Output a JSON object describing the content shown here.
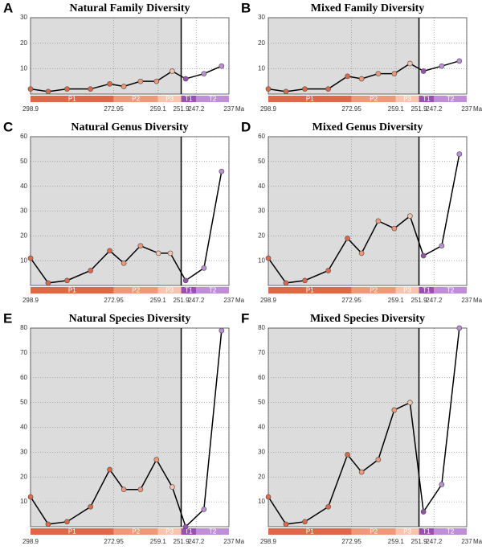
{
  "chart_data": [
    {
      "type": "line",
      "panel": "A",
      "title": "Natural Family Diversity",
      "x_label": "Ma",
      "x": [
        298.9,
        293.4,
        287.5,
        280.2,
        274.2,
        269.8,
        264.6,
        259.6,
        254.7,
        250.5,
        244.8,
        239.3
      ],
      "values": [
        2,
        1,
        2,
        2,
        4,
        3,
        5,
        5,
        9,
        6,
        8,
        11
      ],
      "xlim": [
        298.9,
        237
      ],
      "xticks": [
        298.9,
        272.95,
        259.1,
        251.9,
        247.2,
        237
      ],
      "ylim": [
        0,
        30
      ],
      "yticks": [
        10,
        20,
        30
      ],
      "grid": true,
      "line_color": "#000000",
      "periods": [
        {
          "name": "P1",
          "start": 298.9,
          "end": 272.95,
          "color": "#e0684a"
        },
        {
          "name": "P2",
          "start": 272.95,
          "end": 259.1,
          "color": "#f0987a"
        },
        {
          "name": "P3",
          "start": 259.1,
          "end": 251.9,
          "color": "#f8c4ae"
        },
        {
          "name": "T1",
          "start": 251.9,
          "end": 247.2,
          "color": "#9a50b0"
        },
        {
          "name": "T2",
          "start": 247.2,
          "end": 237,
          "color": "#c08ed6"
        }
      ]
    },
    {
      "type": "line",
      "panel": "B",
      "title": "Mixed Family Diversity",
      "x_label": "Ma",
      "x": [
        298.9,
        293.4,
        287.5,
        280.2,
        274.2,
        269.8,
        264.6,
        259.6,
        254.7,
        250.5,
        244.8,
        239.3
      ],
      "values": [
        2,
        1,
        2,
        2,
        7,
        6,
        8,
        8,
        12,
        9,
        11,
        13
      ],
      "xlim": [
        298.9,
        237
      ],
      "xticks": [
        298.9,
        272.95,
        259.1,
        251.9,
        247.2,
        237
      ],
      "ylim": [
        0,
        30
      ],
      "yticks": [
        10,
        20,
        30
      ],
      "grid": true,
      "line_color": "#000000",
      "periods": [
        {
          "name": "P1",
          "start": 298.9,
          "end": 272.95,
          "color": "#e0684a"
        },
        {
          "name": "P2",
          "start": 272.95,
          "end": 259.1,
          "color": "#f0987a"
        },
        {
          "name": "P3",
          "start": 259.1,
          "end": 251.9,
          "color": "#f8c4ae"
        },
        {
          "name": "T1",
          "start": 251.9,
          "end": 247.2,
          "color": "#9a50b0"
        },
        {
          "name": "T2",
          "start": 247.2,
          "end": 237,
          "color": "#c08ed6"
        }
      ]
    },
    {
      "type": "line",
      "panel": "C",
      "title": "Natural Genus Diversity",
      "x_label": "Ma",
      "x": [
        298.9,
        293.4,
        287.5,
        280.2,
        274.2,
        269.8,
        264.6,
        259.0,
        255.3,
        250.5,
        244.8,
        239.3
      ],
      "values": [
        11,
        1,
        2,
        6,
        14,
        9,
        16,
        13,
        13,
        2,
        7,
        46
      ],
      "xlim": [
        298.9,
        237
      ],
      "xticks": [
        298.9,
        272.95,
        259.1,
        251.9,
        247.2,
        237
      ],
      "ylim": [
        0,
        60
      ],
      "yticks": [
        10,
        20,
        30,
        40,
        50,
        60
      ],
      "grid": true,
      "line_color": "#000000",
      "periods": [
        {
          "name": "P1",
          "start": 298.9,
          "end": 272.95,
          "color": "#e0684a"
        },
        {
          "name": "P2",
          "start": 272.95,
          "end": 259.1,
          "color": "#f0987a"
        },
        {
          "name": "P3",
          "start": 259.1,
          "end": 251.9,
          "color": "#f8c4ae"
        },
        {
          "name": "T1",
          "start": 251.9,
          "end": 247.2,
          "color": "#9a50b0"
        },
        {
          "name": "T2",
          "start": 247.2,
          "end": 237,
          "color": "#c08ed6"
        }
      ]
    },
    {
      "type": "line",
      "panel": "D",
      "title": "Mixed Genus Diversity",
      "x_label": "Ma",
      "x": [
        298.9,
        293.4,
        287.5,
        280.2,
        274.2,
        269.8,
        264.6,
        259.6,
        254.7,
        250.5,
        244.8,
        239.3
      ],
      "values": [
        11,
        1,
        2,
        6,
        19,
        13,
        26,
        23,
        28,
        12,
        16,
        53
      ],
      "xlim": [
        298.9,
        237
      ],
      "xticks": [
        298.9,
        272.95,
        259.1,
        251.9,
        247.2,
        237
      ],
      "ylim": [
        0,
        60
      ],
      "yticks": [
        10,
        20,
        30,
        40,
        50,
        60
      ],
      "grid": true,
      "line_color": "#000000",
      "periods": [
        {
          "name": "P1",
          "start": 298.9,
          "end": 272.95,
          "color": "#e0684a"
        },
        {
          "name": "P2",
          "start": 272.95,
          "end": 259.1,
          "color": "#f0987a"
        },
        {
          "name": "P3",
          "start": 259.1,
          "end": 251.9,
          "color": "#f8c4ae"
        },
        {
          "name": "T1",
          "start": 251.9,
          "end": 247.2,
          "color": "#9a50b0"
        },
        {
          "name": "T2",
          "start": 247.2,
          "end": 237,
          "color": "#c08ed6"
        }
      ]
    },
    {
      "type": "line",
      "panel": "E",
      "title": "Natural Species Diversity",
      "x_label": "Ma",
      "x": [
        298.9,
        293.4,
        287.5,
        280.2,
        274.2,
        269.8,
        264.6,
        259.6,
        254.7,
        250.5,
        244.8,
        239.3
      ],
      "values": [
        12,
        1,
        2,
        8,
        23,
        15,
        15,
        27,
        16,
        0,
        7,
        79
      ],
      "xlim": [
        298.9,
        237
      ],
      "xticks": [
        298.9,
        272.95,
        259.1,
        251.9,
        247.2,
        237
      ],
      "ylim": [
        0,
        80
      ],
      "yticks": [
        10,
        20,
        30,
        40,
        50,
        60,
        70,
        80
      ],
      "grid": true,
      "line_color": "#000000",
      "periods": [
        {
          "name": "P1",
          "start": 298.9,
          "end": 272.95,
          "color": "#e0684a"
        },
        {
          "name": "P2",
          "start": 272.95,
          "end": 259.1,
          "color": "#f0987a"
        },
        {
          "name": "P3",
          "start": 259.1,
          "end": 251.9,
          "color": "#f8c4ae"
        },
        {
          "name": "T1",
          "start": 251.9,
          "end": 247.2,
          "color": "#9a50b0"
        },
        {
          "name": "T2",
          "start": 247.2,
          "end": 237,
          "color": "#c08ed6"
        }
      ]
    },
    {
      "type": "line",
      "panel": "F",
      "title": "Mixed Species Diversity",
      "x_label": "Ma",
      "x": [
        298.9,
        293.4,
        287.5,
        280.2,
        274.2,
        269.8,
        264.6,
        259.6,
        254.7,
        250.5,
        244.8,
        239.3
      ],
      "values": [
        12,
        1,
        2,
        8,
        29,
        22,
        27,
        47,
        50,
        6,
        17,
        80
      ],
      "xlim": [
        298.9,
        237
      ],
      "xticks": [
        298.9,
        272.95,
        259.1,
        251.9,
        247.2,
        237
      ],
      "ylim": [
        0,
        80
      ],
      "yticks": [
        10,
        20,
        30,
        40,
        50,
        60,
        70,
        80
      ],
      "grid": true,
      "line_color": "#000000",
      "periods": [
        {
          "name": "P1",
          "start": 298.9,
          "end": 272.95,
          "color": "#e0684a"
        },
        {
          "name": "P2",
          "start": 272.95,
          "end": 259.1,
          "color": "#f0987a"
        },
        {
          "name": "P3",
          "start": 259.1,
          "end": 251.9,
          "color": "#f8c4ae"
        },
        {
          "name": "T1",
          "start": 251.9,
          "end": 247.2,
          "color": "#9a50b0"
        },
        {
          "name": "T2",
          "start": 247.2,
          "end": 237,
          "color": "#c08ed6"
        }
      ]
    }
  ]
}
